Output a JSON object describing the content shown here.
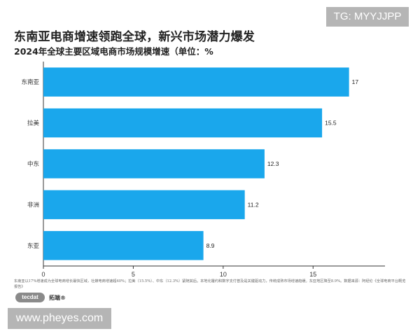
{
  "header": {
    "title": "东南亚电商增速领跑全球，新兴市场潜力爆发",
    "subtitle": "2024年全球主要区域电商市场规模增速（单位：%"
  },
  "overlay": {
    "tag": "TG: MYYJJPP",
    "watermark": "www.pheyes.com"
  },
  "footnote": "东南亚以17%增速成为全球电商增长最快区域，社媒电商增速超40%；拉美（15.5%）、中东（12.3%）紧随其后。本地化履约和数字支付普及是关键驱动力，传统成熟市场增速趋缓。东亚地区降至8.9%。数据来源：阿经伦《全球电商平台概览报告》",
  "brand": {
    "logo": "tecdat",
    "name": "拓端®"
  },
  "colors": {
    "bar": "#1aa7ec",
    "axis": "#333333",
    "grid": "#cccccc"
  },
  "chart_data": {
    "type": "bar",
    "orientation": "horizontal",
    "categories": [
      "东南亚",
      "拉美",
      "中东",
      "非洲",
      "东亚"
    ],
    "values": [
      17,
      15.5,
      12.3,
      11.2,
      8.9
    ],
    "value_labels": [
      "17",
      "15.5",
      "12.3",
      "11.2",
      "8.9"
    ],
    "xlim": [
      0,
      19
    ],
    "xticks": [
      0,
      5,
      10,
      15
    ],
    "xtick_labels": [
      "0",
      "5",
      "10",
      "15"
    ],
    "grid": false
  }
}
